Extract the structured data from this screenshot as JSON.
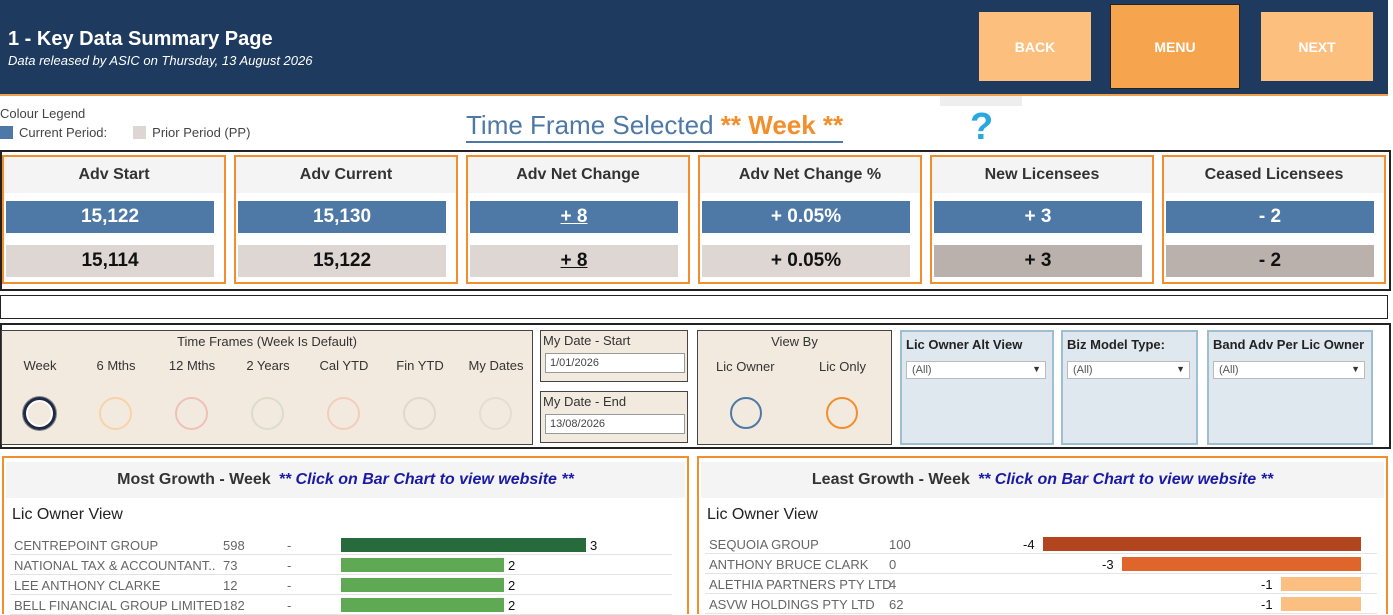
{
  "header": {
    "title": "1 - Key Data Summary Page",
    "subtitle": "Data released by ASIC on Thursday, 13 August 2026",
    "buttons": {
      "back": "BACK",
      "menu": "MENU",
      "next": "NEXT"
    }
  },
  "legend": {
    "title": "Colour Legend",
    "current": "Current Period:",
    "prior": "Prior Period (PP)",
    "current_color": "#4e79a7",
    "prior_color": "#ddd6d3"
  },
  "timeframe": {
    "label": "Time Frame Selected",
    "value": "** Week **",
    "help": "?"
  },
  "kpis": [
    {
      "title": "Adv Start",
      "current": "15,122",
      "prior": "15,114"
    },
    {
      "title": "Adv Current",
      "current": "15,130",
      "prior": "15,122"
    },
    {
      "title": "Adv Net Change",
      "current": "+ 8",
      "prior": "+ 8"
    },
    {
      "title": "Adv Net Change %",
      "current": "+ 0.05%",
      "prior": "+ 0.05%"
    },
    {
      "title": "New Licensees",
      "current": "+ 3",
      "prior": "+ 3"
    },
    {
      "title": "Ceased Licensees",
      "current": "- 2",
      "prior": "- 2"
    }
  ],
  "filters": {
    "timeframes_caption": "Time Frames (Week Is Default)",
    "timeframes": [
      {
        "label": "Week",
        "ring_color": "#1f2a44",
        "selected": true
      },
      {
        "label": "6 Mths",
        "ring_color": "#f6d3a8",
        "selected": false
      },
      {
        "label": "12 Mths",
        "ring_color": "#efc0b8",
        "selected": false
      },
      {
        "label": "2 Years",
        "ring_color": "#dcdccb",
        "selected": false
      },
      {
        "label": "Cal YTD",
        "ring_color": "#f3cdbc",
        "selected": false
      },
      {
        "label": "Fin YTD",
        "ring_color": "#e0d8cc",
        "selected": false
      },
      {
        "label": "My Dates",
        "ring_color": "#e6ddd0",
        "selected": false
      }
    ],
    "date_start": {
      "label": "My Date - Start",
      "value": "1/01/2026"
    },
    "date_end": {
      "label": "My Date - End",
      "value": "13/08/2026"
    },
    "view_by": {
      "caption": "View By",
      "opt1": "Lic Owner",
      "opt2": "Lic Only"
    },
    "dropdowns": [
      {
        "label": "Lic Owner Alt View",
        "value": "(All)"
      },
      {
        "label": "Biz Model Type:",
        "value": "(All)"
      },
      {
        "label": "Band Adv Per Lic Owner",
        "value": "(All)"
      }
    ]
  },
  "most_growth": {
    "title": "Most Growth - Week",
    "note": "** Click on Bar Chart to view website **",
    "view": "Lic Owner View",
    "rows": [
      {
        "name": "CENTREPOINT GROUP",
        "count": "598",
        "dash": "-",
        "value": 3,
        "color": "#276b3c"
      },
      {
        "name": "NATIONAL TAX & ACCOUNTANT..",
        "count": "73",
        "dash": "-",
        "value": 2,
        "color": "#5fa854"
      },
      {
        "name": "LEE ANTHONY  CLARKE",
        "count": "12",
        "dash": "-",
        "value": 2,
        "color": "#5fa854"
      },
      {
        "name": "BELL FINANCIAL GROUP LIMITED",
        "count": "182",
        "dash": "-",
        "value": 2,
        "color": "#5fa854"
      }
    ]
  },
  "least_growth": {
    "title": "Least Growth - Week",
    "note": "** Click on Bar Chart to view website **",
    "view": "Lic Owner View",
    "rows": [
      {
        "name": "SEQUOIA GROUP",
        "count": "100",
        "value": -4,
        "color": "#b2451f"
      },
      {
        "name": "ANTHONY BRUCE  CLARK",
        "count": "0",
        "value": -3,
        "color": "#e0652a"
      },
      {
        "name": "ALETHIA PARTNERS PTY LTD",
        "count": "4",
        "value": -1,
        "color": "#fbbf82"
      },
      {
        "name": "ASVW HOLDINGS PTY LTD",
        "count": "62",
        "value": -1,
        "color": "#fbbf82"
      }
    ]
  }
}
